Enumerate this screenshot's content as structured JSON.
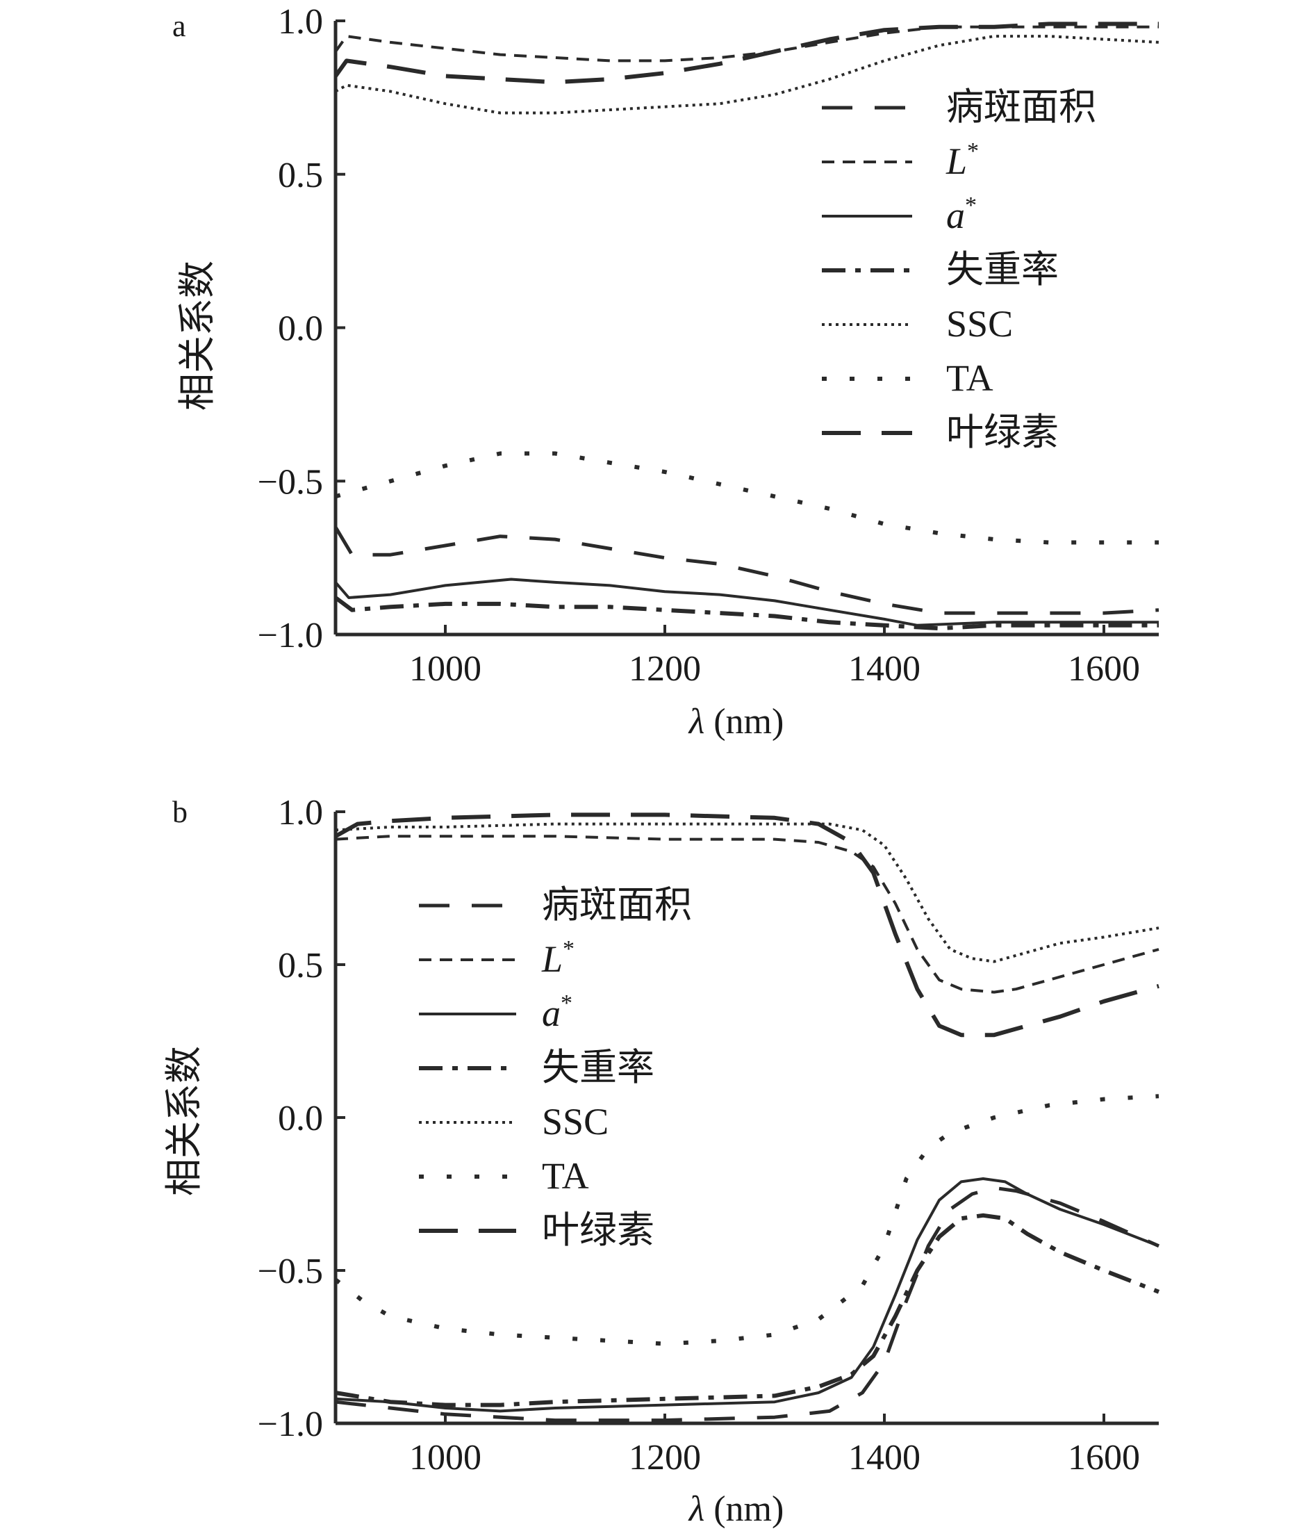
{
  "chart_data": [
    {
      "type": "line",
      "panel_label": "a",
      "xlabel_italic": "λ",
      "xlabel_rest": " (nm)",
      "ylabel": "相关系数",
      "xlim": [
        900,
        1650
      ],
      "ylim": [
        -1.0,
        1.0
      ],
      "xticks": [
        1000,
        1200,
        1400,
        1600
      ],
      "yticks": [
        1.0,
        0.5,
        0.0,
        -0.5,
        -1.0
      ],
      "ytick_labels": [
        "1.0",
        "0.5",
        "0.0",
        "−0.5",
        "−1.0"
      ],
      "grid": false,
      "legend_position": "top-right",
      "series": [
        {
          "name": "病斑面积",
          "dash": "long",
          "x": [
            900,
            915,
            950,
            1000,
            1050,
            1100,
            1150,
            1200,
            1250,
            1300,
            1350,
            1400,
            1450,
            1500,
            1550,
            1600,
            1650
          ],
          "y": [
            -0.65,
            -0.74,
            -0.74,
            -0.71,
            -0.68,
            -0.69,
            -0.72,
            -0.75,
            -0.77,
            -0.81,
            -0.86,
            -0.9,
            -0.93,
            -0.93,
            -0.93,
            -0.93,
            -0.92
          ]
        },
        {
          "name": "L*",
          "dash": "short",
          "x": [
            900,
            910,
            950,
            1000,
            1050,
            1100,
            1150,
            1200,
            1250,
            1300,
            1350,
            1400,
            1450,
            1500,
            1550,
            1600,
            1650
          ],
          "y": [
            0.9,
            0.95,
            0.93,
            0.91,
            0.89,
            0.88,
            0.87,
            0.87,
            0.88,
            0.9,
            0.93,
            0.96,
            0.98,
            0.98,
            0.98,
            0.98,
            0.98
          ]
        },
        {
          "name": "a*",
          "dash": "solid",
          "x": [
            900,
            912,
            950,
            1000,
            1060,
            1100,
            1150,
            1200,
            1250,
            1300,
            1350,
            1400,
            1430,
            1500,
            1550,
            1600,
            1650
          ],
          "y": [
            -0.83,
            -0.88,
            -0.87,
            -0.84,
            -0.82,
            -0.83,
            -0.84,
            -0.86,
            -0.87,
            -0.89,
            -0.92,
            -0.95,
            -0.97,
            -0.96,
            -0.96,
            -0.96,
            -0.96
          ]
        },
        {
          "name": "失重率",
          "dash": "dashdot",
          "x": [
            900,
            915,
            950,
            1000,
            1050,
            1100,
            1150,
            1200,
            1250,
            1300,
            1350,
            1400,
            1450,
            1500,
            1550,
            1600,
            1650
          ],
          "y": [
            -0.88,
            -0.92,
            -0.91,
            -0.9,
            -0.9,
            -0.91,
            -0.91,
            -0.92,
            -0.93,
            -0.94,
            -0.96,
            -0.97,
            -0.98,
            -0.97,
            -0.97,
            -0.97,
            -0.97
          ]
        },
        {
          "name": "SSC",
          "dash": "dotted",
          "x": [
            900,
            910,
            950,
            1000,
            1050,
            1100,
            1150,
            1200,
            1250,
            1300,
            1350,
            1400,
            1450,
            1500,
            1550,
            1600,
            1650
          ],
          "y": [
            0.77,
            0.79,
            0.77,
            0.73,
            0.7,
            0.7,
            0.71,
            0.72,
            0.73,
            0.76,
            0.81,
            0.87,
            0.92,
            0.95,
            0.95,
            0.94,
            0.93
          ]
        },
        {
          "name": "TA",
          "dash": "sparse",
          "x": [
            900,
            920,
            950,
            1000,
            1050,
            1100,
            1150,
            1200,
            1250,
            1300,
            1350,
            1400,
            1450,
            1500,
            1550,
            1600,
            1650
          ],
          "y": [
            -0.55,
            -0.53,
            -0.5,
            -0.45,
            -0.41,
            -0.41,
            -0.44,
            -0.47,
            -0.51,
            -0.55,
            -0.59,
            -0.64,
            -0.67,
            -0.69,
            -0.7,
            -0.7,
            -0.7
          ]
        },
        {
          "name": "叶绿素",
          "dash": "longlong",
          "x": [
            900,
            910,
            950,
            1000,
            1050,
            1100,
            1150,
            1200,
            1250,
            1300,
            1350,
            1400,
            1450,
            1500,
            1550,
            1600,
            1650
          ],
          "y": [
            0.82,
            0.87,
            0.85,
            0.82,
            0.81,
            0.8,
            0.81,
            0.83,
            0.86,
            0.9,
            0.94,
            0.97,
            0.98,
            0.98,
            0.99,
            0.99,
            0.99
          ]
        }
      ]
    },
    {
      "type": "line",
      "panel_label": "b",
      "xlabel_italic": "λ",
      "xlabel_rest": " (nm)",
      "ylabel": "相关系数",
      "xlim": [
        900,
        1650
      ],
      "ylim": [
        -1.0,
        1.0
      ],
      "xticks": [
        1000,
        1200,
        1400,
        1600
      ],
      "yticks": [
        1.0,
        0.5,
        0.0,
        -0.5,
        -1.0
      ],
      "ytick_labels": [
        "1.0",
        "0.5",
        "0.0",
        "−0.5",
        "−1.0"
      ],
      "grid": false,
      "legend_position": "upper-left",
      "series": [
        {
          "name": "病斑面积",
          "dash": "long",
          "x": [
            900,
            950,
            1000,
            1100,
            1200,
            1300,
            1350,
            1380,
            1400,
            1420,
            1440,
            1460,
            1480,
            1500,
            1520,
            1560,
            1600,
            1650
          ],
          "y": [
            -0.93,
            -0.95,
            -0.97,
            -0.99,
            -0.99,
            -0.98,
            -0.96,
            -0.9,
            -0.8,
            -0.6,
            -0.42,
            -0.3,
            -0.25,
            -0.23,
            -0.24,
            -0.28,
            -0.34,
            -0.42
          ]
        },
        {
          "name": "L*",
          "dash": "short",
          "x": [
            900,
            950,
            1000,
            1100,
            1200,
            1300,
            1340,
            1370,
            1390,
            1410,
            1430,
            1450,
            1470,
            1500,
            1520,
            1560,
            1600,
            1650
          ],
          "y": [
            0.91,
            0.92,
            0.92,
            0.92,
            0.91,
            0.91,
            0.9,
            0.87,
            0.82,
            0.7,
            0.55,
            0.45,
            0.42,
            0.41,
            0.42,
            0.46,
            0.5,
            0.55
          ]
        },
        {
          "name": "a*",
          "dash": "solid",
          "x": [
            900,
            950,
            1000,
            1050,
            1100,
            1200,
            1300,
            1340,
            1370,
            1390,
            1410,
            1430,
            1450,
            1470,
            1490,
            1510,
            1530,
            1560,
            1600,
            1650
          ],
          "y": [
            -0.92,
            -0.93,
            -0.95,
            -0.96,
            -0.95,
            -0.94,
            -0.93,
            -0.9,
            -0.85,
            -0.75,
            -0.58,
            -0.4,
            -0.27,
            -0.21,
            -0.2,
            -0.21,
            -0.25,
            -0.3,
            -0.35,
            -0.42
          ]
        },
        {
          "name": "失重率",
          "dash": "dashdot",
          "x": [
            900,
            950,
            1000,
            1050,
            1100,
            1200,
            1300,
            1340,
            1370,
            1390,
            1410,
            1430,
            1450,
            1470,
            1490,
            1510,
            1530,
            1560,
            1600,
            1650
          ],
          "y": [
            -0.9,
            -0.93,
            -0.94,
            -0.94,
            -0.93,
            -0.92,
            -0.91,
            -0.88,
            -0.84,
            -0.78,
            -0.65,
            -0.5,
            -0.39,
            -0.33,
            -0.32,
            -0.33,
            -0.38,
            -0.44,
            -0.5,
            -0.57
          ]
        },
        {
          "name": "SSC",
          "dash": "dotted",
          "x": [
            900,
            950,
            1000,
            1100,
            1200,
            1300,
            1350,
            1380,
            1400,
            1420,
            1440,
            1460,
            1480,
            1500,
            1520,
            1560,
            1600,
            1650
          ],
          "y": [
            0.94,
            0.95,
            0.95,
            0.96,
            0.96,
            0.96,
            0.96,
            0.94,
            0.89,
            0.78,
            0.65,
            0.55,
            0.52,
            0.51,
            0.53,
            0.57,
            0.59,
            0.62
          ]
        },
        {
          "name": "TA",
          "dash": "sparse",
          "x": [
            900,
            925,
            950,
            1000,
            1050,
            1100,
            1150,
            1200,
            1250,
            1300,
            1340,
            1380,
            1400,
            1420,
            1440,
            1460,
            1500,
            1550,
            1600,
            1650
          ],
          "y": [
            -0.53,
            -0.6,
            -0.65,
            -0.69,
            -0.71,
            -0.72,
            -0.73,
            -0.74,
            -0.73,
            -0.71,
            -0.66,
            -0.55,
            -0.42,
            -0.2,
            -0.1,
            -0.05,
            0.0,
            0.04,
            0.06,
            0.07
          ]
        },
        {
          "name": "叶绿素",
          "dash": "longlong",
          "x": [
            900,
            920,
            950,
            1000,
            1100,
            1200,
            1300,
            1340,
            1370,
            1390,
            1410,
            1430,
            1450,
            1470,
            1500,
            1520,
            1560,
            1600,
            1650
          ],
          "y": [
            0.92,
            0.96,
            0.97,
            0.98,
            0.99,
            0.99,
            0.98,
            0.96,
            0.9,
            0.8,
            0.6,
            0.42,
            0.3,
            0.27,
            0.27,
            0.29,
            0.33,
            0.38,
            0.43
          ]
        }
      ]
    }
  ]
}
